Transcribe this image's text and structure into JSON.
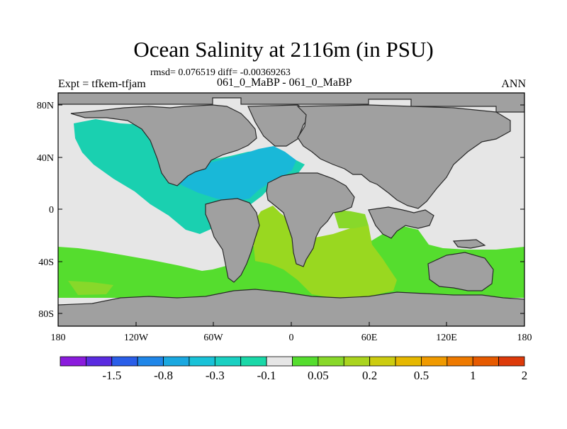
{
  "header": {
    "title": "Ocean Salinity at 2116m (in PSU)",
    "stats": "rmsd= 0.076519 diff= -0.00369263",
    "experiment": "Expt = tfkem-tfjam",
    "cases": "061_0_MaBP - 061_0_MaBP",
    "season": "ANN"
  },
  "map": {
    "lat_ticks": [
      "80N",
      "40N",
      "0",
      "40S",
      "80S"
    ],
    "lon_ticks": [
      "180",
      "120W",
      "60W",
      "0",
      "60E",
      "120E",
      "180"
    ],
    "land_color": "#a0a0a0",
    "neutral_color": "#e6e6e6"
  },
  "colorbar": {
    "colors": [
      "#8a1bdc",
      "#5a2be0",
      "#2a5ee8",
      "#1f86e8",
      "#1aa8e0",
      "#19c2d8",
      "#1ad0c2",
      "#1ad8a8",
      "#e6e6e6",
      "#55dd2e",
      "#88d82a",
      "#aad41e",
      "#cccc10",
      "#e6b800",
      "#f09a00",
      "#ee7a00",
      "#e65a00",
      "#dd3a0a"
    ],
    "labels": [
      "-1.5",
      "-0.8",
      "-0.3",
      "-0.1",
      "0.05",
      "0.2",
      "0.5",
      "1",
      "2"
    ]
  }
}
